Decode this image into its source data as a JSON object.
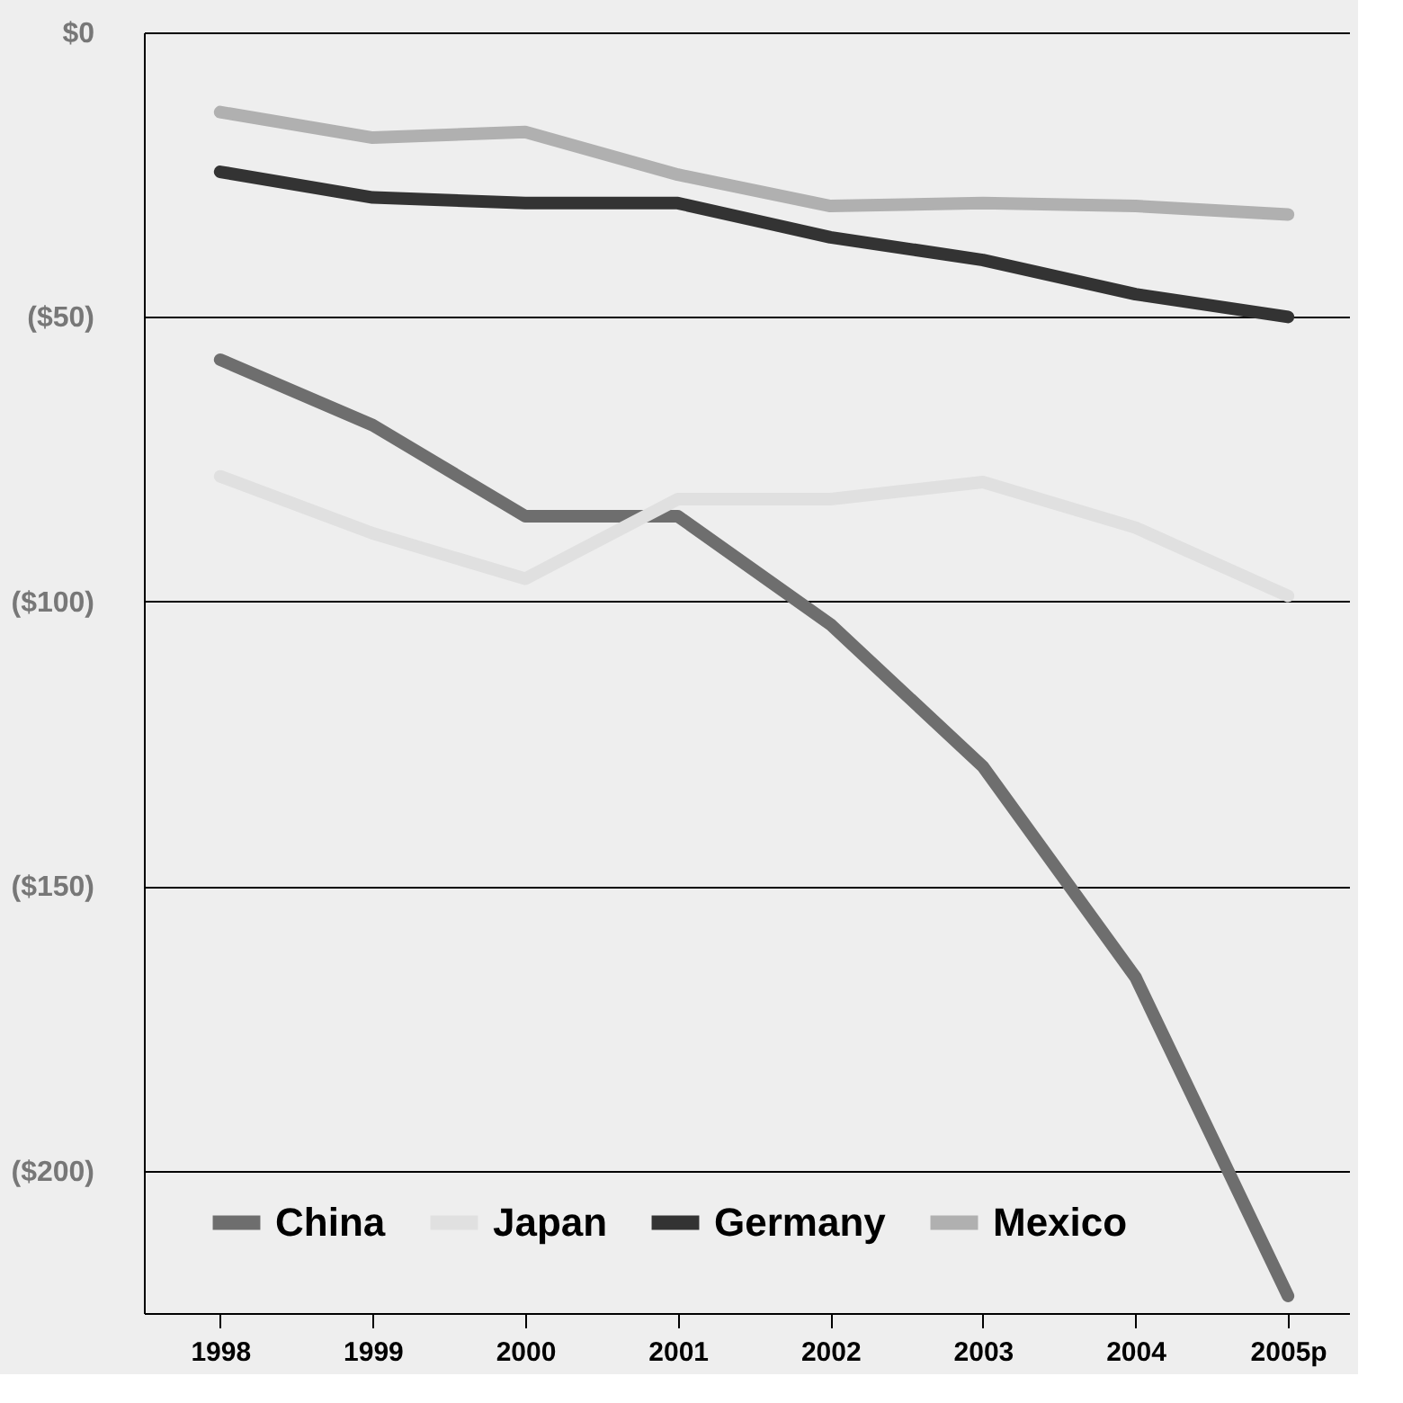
{
  "chart_data": {
    "type": "line",
    "categories": [
      "1998",
      "1999",
      "2000",
      "2001",
      "2002",
      "2003",
      "2004",
      "2005p"
    ],
    "series": [
      {
        "name": "China",
        "color": "#6e6e6e",
        "values": [
          -57.5,
          -69,
          -85,
          -85,
          -104,
          -129,
          -166,
          -222
        ]
      },
      {
        "name": "Japan",
        "color": "#e0e0e0",
        "values": [
          -78,
          -88,
          -96,
          -82,
          -82,
          -79,
          -87,
          -99
        ]
      },
      {
        "name": "Germany",
        "color": "#333333",
        "values": [
          -24.5,
          -29,
          -30,
          -30,
          -36,
          -40,
          -46,
          -50
        ]
      },
      {
        "name": "Mexico",
        "color": "#b0b0b0",
        "values": [
          -14,
          -18.5,
          -17.5,
          -25,
          -30.5,
          -30,
          -30.5,
          -32
        ]
      }
    ],
    "ylim": [
      -225,
      0
    ],
    "yticks": [
      {
        "value": 0,
        "label": "$0"
      },
      {
        "value": -50,
        "label": "($50)"
      },
      {
        "value": -100,
        "label": "($100)"
      },
      {
        "value": -150,
        "label": "($150)"
      },
      {
        "value": -200,
        "label": "($200)"
      }
    ],
    "grid": "y",
    "legend": "bottom",
    "marker": "none",
    "line_style": "solid"
  }
}
